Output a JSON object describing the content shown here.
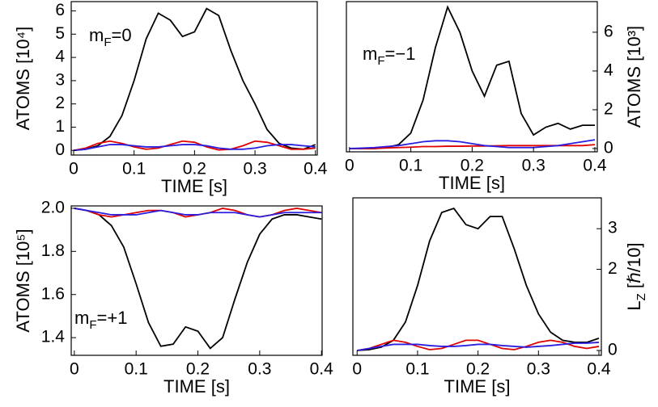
{
  "chart_data": [
    {
      "type": "line",
      "xlabel": "TIME [s]",
      "ylabel": "ATOMS [10⁴]",
      "annotation": [
        "m",
        "F",
        "=0"
      ],
      "yaxis_side": "left",
      "xlim": [
        -0.004,
        0.403
      ],
      "ylim": [
        -0.2,
        6.4
      ],
      "xticks": [
        0,
        0.1,
        0.2,
        0.3,
        0.4
      ],
      "yticks": [
        0,
        1,
        2,
        3,
        4,
        5,
        6
      ],
      "x": [
        0,
        0.02,
        0.04,
        0.06,
        0.08,
        0.1,
        0.12,
        0.14,
        0.16,
        0.18,
        0.2,
        0.22,
        0.24,
        0.26,
        0.28,
        0.3,
        0.32,
        0.34,
        0.36,
        0.38,
        0.4
      ],
      "series": [
        {
          "color": "#000000",
          "values": [
            0,
            0.05,
            0.2,
            0.6,
            1.5,
            3.0,
            4.8,
            5.9,
            5.6,
            4.9,
            5.1,
            6.1,
            5.8,
            4.3,
            3.0,
            2.0,
            0.9,
            0.3,
            0.1,
            0.05,
            0.25
          ]
        },
        {
          "color": "#e00000",
          "values": [
            0,
            0.1,
            0.3,
            0.4,
            0.3,
            0.15,
            0.05,
            0.1,
            0.25,
            0.4,
            0.35,
            0.15,
            0.02,
            0.05,
            0.2,
            0.4,
            0.35,
            0.2,
            0.05,
            0.05,
            0.1
          ]
        },
        {
          "color": "#2a1ee0",
          "values": [
            0,
            0.05,
            0.15,
            0.25,
            0.25,
            0.2,
            0.15,
            0.15,
            0.2,
            0.25,
            0.25,
            0.2,
            0.1,
            0.05,
            0.05,
            0.1,
            0.2,
            0.25,
            0.25,
            0.2,
            0.15
          ]
        }
      ]
    },
    {
      "type": "line",
      "xlabel": "TIME [s]",
      "ylabel": "ATOMS [10³]",
      "annotation": [
        "m",
        "F",
        "=−1"
      ],
      "yaxis_side": "right",
      "xlim": [
        -0.005,
        0.404
      ],
      "ylim": [
        -0.17,
        7.58
      ],
      "xticks": [
        0,
        0.1,
        0.2,
        0.3,
        0.4
      ],
      "yticks": [
        0,
        2,
        4,
        6
      ],
      "x": [
        0,
        0.02,
        0.04,
        0.06,
        0.08,
        0.1,
        0.12,
        0.14,
        0.16,
        0.18,
        0.2,
        0.22,
        0.24,
        0.26,
        0.28,
        0.3,
        0.32,
        0.34,
        0.36,
        0.38,
        0.4
      ],
      "series": [
        {
          "color": "#000000",
          "values": [
            0,
            0,
            0,
            0.05,
            0.2,
            0.8,
            2.5,
            5.2,
            7.3,
            6.0,
            4.0,
            2.7,
            4.3,
            4.5,
            1.8,
            0.7,
            1.1,
            1.3,
            1.0,
            1.2,
            1.2
          ]
        },
        {
          "color": "#e00000",
          "values": [
            0,
            0,
            0,
            0.03,
            0.05,
            0.07,
            0.1,
            0.1,
            0.12,
            0.12,
            0.13,
            0.13,
            0.14,
            0.15,
            0.15,
            0.15,
            0.15,
            0.15,
            0.15,
            0.15,
            0.2
          ]
        },
        {
          "color": "#2a1ee0",
          "values": [
            0,
            0.02,
            0.05,
            0.1,
            0.15,
            0.25,
            0.35,
            0.4,
            0.4,
            0.35,
            0.25,
            0.15,
            0.1,
            0.05,
            0.05,
            0.05,
            0.1,
            0.15,
            0.25,
            0.35,
            0.45
          ]
        }
      ]
    },
    {
      "type": "line",
      "xlabel": "TIME [s]",
      "ylabel": "ATOMS [10⁵]",
      "annotation": [
        "m",
        "F",
        "=+1"
      ],
      "yaxis_side": "left",
      "xlim": [
        -0.005,
        0.401
      ],
      "ylim": [
        1.318,
        2.011
      ],
      "xticks": [
        0,
        0.1,
        0.2,
        0.3,
        0.4
      ],
      "yticks": [
        {
          "value": 2,
          "label": "2.0"
        },
        1.8,
        1.6,
        1.4
      ],
      "x": [
        0,
        0.02,
        0.04,
        0.06,
        0.08,
        0.1,
        0.12,
        0.14,
        0.16,
        0.18,
        0.2,
        0.22,
        0.24,
        0.26,
        0.28,
        0.3,
        0.32,
        0.34,
        0.36,
        0.38,
        0.4
      ],
      "series": [
        {
          "color": "#000000",
          "values": [
            2.0,
            1.99,
            1.97,
            1.92,
            1.82,
            1.65,
            1.47,
            1.36,
            1.37,
            1.45,
            1.43,
            1.35,
            1.4,
            1.58,
            1.75,
            1.88,
            1.95,
            1.97,
            1.97,
            1.96,
            1.95
          ]
        },
        {
          "color": "#e00000",
          "values": [
            2.0,
            1.99,
            1.97,
            1.96,
            1.97,
            1.98,
            1.99,
            1.99,
            1.98,
            1.96,
            1.97,
            1.98,
            2.0,
            1.99,
            1.97,
            1.96,
            1.97,
            1.99,
            2.0,
            1.99,
            1.98
          ]
        },
        {
          "color": "#2a1ee0",
          "values": [
            2.0,
            1.99,
            1.98,
            1.97,
            1.97,
            1.97,
            1.98,
            1.99,
            1.98,
            1.97,
            1.97,
            1.98,
            1.98,
            1.98,
            1.97,
            1.96,
            1.97,
            1.98,
            1.98,
            1.98,
            1.98
          ]
        }
      ]
    },
    {
      "type": "line",
      "xlabel": "TIME [s]",
      "ylabel": [
        "L",
        "Z",
        " [ℏ/10]"
      ],
      "yaxis_side": "right",
      "xlim": [
        -0.007,
        0.404
      ],
      "ylim": [
        -0.12,
        3.76
      ],
      "xticks": [
        0,
        0.1,
        0.2,
        0.3,
        0.4
      ],
      "yticks": [
        0,
        2,
        3
      ],
      "x": [
        0,
        0.02,
        0.04,
        0.06,
        0.08,
        0.1,
        0.12,
        0.14,
        0.16,
        0.18,
        0.2,
        0.22,
        0.24,
        0.26,
        0.28,
        0.3,
        0.32,
        0.34,
        0.36,
        0.38,
        0.4
      ],
      "series": [
        {
          "color": "#000000",
          "values": [
            0,
            0.02,
            0.08,
            0.25,
            0.7,
            1.6,
            2.7,
            3.4,
            3.5,
            3.1,
            3.0,
            3.3,
            3.3,
            2.5,
            1.6,
            0.9,
            0.45,
            0.25,
            0.2,
            0.2,
            0.3
          ]
        },
        {
          "color": "#e00000",
          "values": [
            0,
            0.05,
            0.15,
            0.25,
            0.2,
            0.1,
            0.02,
            0.05,
            0.15,
            0.25,
            0.25,
            0.15,
            0.05,
            0.02,
            0.1,
            0.2,
            0.25,
            0.2,
            0.1,
            0.05,
            0.1
          ]
        },
        {
          "color": "#2a1ee0",
          "values": [
            0,
            0.05,
            0.1,
            0.15,
            0.15,
            0.15,
            0.12,
            0.1,
            0.1,
            0.12,
            0.15,
            0.15,
            0.12,
            0.1,
            0.08,
            0.1,
            0.12,
            0.15,
            0.18,
            0.18,
            0.2
          ]
        }
      ]
    }
  ]
}
